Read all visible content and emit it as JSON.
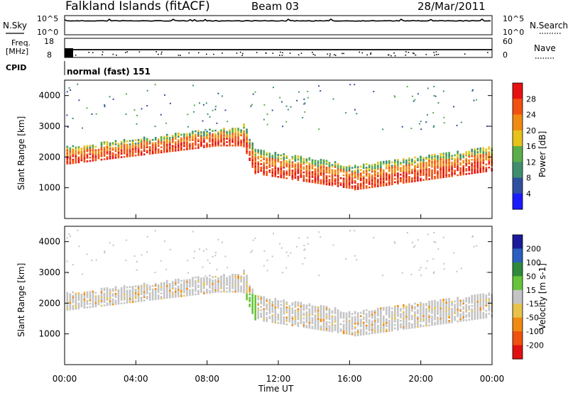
{
  "header": {
    "station": "Falkland Islands (fitACF)",
    "beam": "Beam 03",
    "date": "28/Mar/2011"
  },
  "noise_panel": {
    "left_label": "N.Sky",
    "right_label": "N.Search",
    "left_ticks": [
      "10^5",
      "10^0"
    ],
    "right_ticks": [
      "10^5",
      "10^0"
    ]
  },
  "freq_panel": {
    "left_label_line1": "Freq.",
    "left_label_line2": "[MHz]",
    "right_label": "Nave",
    "left_ticks": [
      "18",
      "8"
    ],
    "right_ticks": [
      "60",
      "0"
    ]
  },
  "cpid_panel": {
    "label": "CPID",
    "text": "normal (fast) 151"
  },
  "chart_data": [
    {
      "type": "heatmap",
      "name": "power",
      "ylabel": "Slant Range [km]",
      "y_ticks": [
        "1000",
        "2000",
        "3000",
        "4000"
      ],
      "ylim": [
        0,
        4500
      ],
      "colorbar_label": "Power [dB]",
      "colorbar_ticks": [
        "4",
        "8",
        "12",
        "16",
        "20",
        "24",
        "28"
      ],
      "colors": [
        "#1a1aff",
        "#2f4fa0",
        "#3f8f6f",
        "#5aae4a",
        "#e6c21a",
        "#f08a10",
        "#f25010",
        "#e81010"
      ]
    },
    {
      "type": "heatmap",
      "name": "velocity",
      "ylabel": "Slant Range [km]",
      "y_ticks": [
        "1000",
        "2000",
        "3000",
        "4000"
      ],
      "ylim": [
        0,
        4500
      ],
      "colorbar_label": "Velocity [m s-1]",
      "colorbar_ticks": [
        "200",
        "100",
        "50",
        "15",
        "-15",
        "-50",
        "-100",
        "-200"
      ],
      "colors": [
        "#1a1a9a",
        "#2a5fc0",
        "#2e8a3a",
        "#66c43a",
        "#c4c4c4",
        "#e8c24a",
        "#f08a10",
        "#f05010",
        "#e01010"
      ]
    }
  ],
  "x_axis": {
    "ticks": [
      "00:00",
      "04:00",
      "08:00",
      "12:00",
      "16:00",
      "20:00",
      "00:00"
    ],
    "label": "Time UT"
  }
}
